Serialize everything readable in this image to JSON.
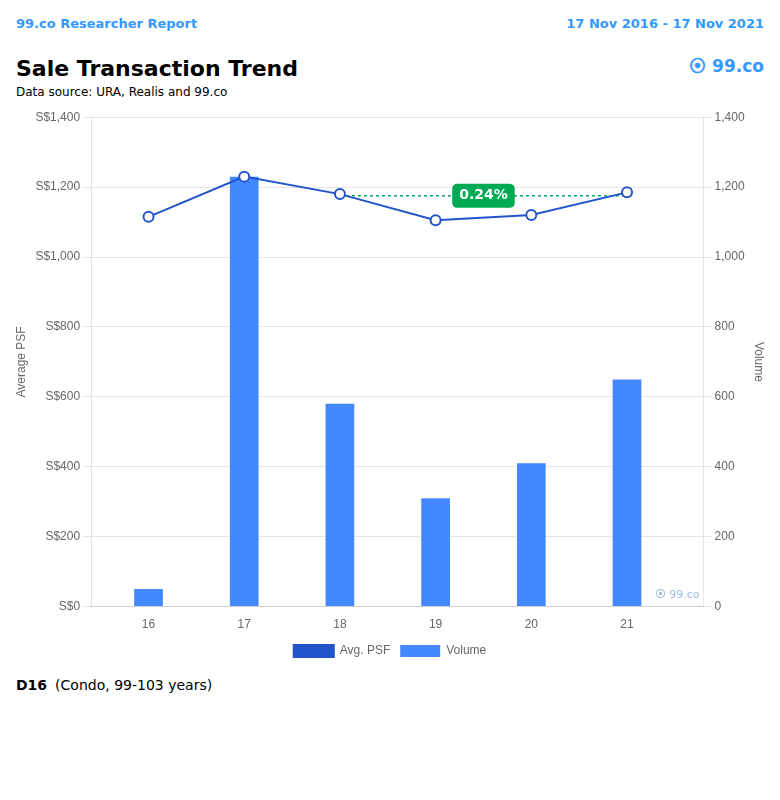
{
  "chart_data": {
    "type": "bar",
    "header": [
      "99.co Researcher Report",
      "17 Nov 2016 - 17 Nov 2021"
    ],
    "header_color": "#3399ff",
    "title": "Sale Transaction Trend",
    "logo": "⦿ 99.co",
    "subtitle": "Data source: URA, Realis and 99.co",
    "watermark": "⦿ 99.co",
    "footer": [
      "D16",
      "(Condo, 99-103 years)"
    ],
    "x": [
      16,
      17,
      18,
      19,
      20,
      21
    ],
    "xlim": [
      15.4,
      21.8
    ],
    "xticks": [
      16,
      17,
      18,
      19,
      20,
      21
    ],
    "ylabel": "Average PSF",
    "ylim": [
      0,
      1400
    ],
    "yticks": [
      {
        "value": 0,
        "label": "S$0"
      },
      {
        "value": 200,
        "label": "S$200"
      },
      {
        "value": 400,
        "label": "S$400"
      },
      {
        "value": 600,
        "label": "S$600"
      },
      {
        "value": 800,
        "label": "S$800"
      },
      {
        "value": 1000,
        "label": "S$1,000"
      },
      {
        "value": 1200,
        "label": "S$1,200"
      },
      {
        "value": 1400,
        "label": "S$1,400"
      }
    ],
    "y2label": "Volume",
    "y2lim": [
      0,
      1400
    ],
    "y2ticks": [
      0,
      200,
      400,
      600,
      800,
      {
        "value": 1000,
        "label": "1,000"
      },
      {
        "value": 1200,
        "label": "1,200"
      },
      {
        "value": 1400,
        "label": "1,400"
      }
    ],
    "series": [
      {
        "name": "Avg. PSF",
        "type": "line",
        "color": "#2255cc",
        "marker": "circle",
        "axis": "y",
        "values": [
          1115,
          1230,
          1180,
          1105,
          1120,
          1185
        ]
      },
      {
        "name": "Volume",
        "type": "bar",
        "color": "#4488ff",
        "axis": "y2",
        "values": [
          50,
          1230,
          580,
          310,
          410,
          650
        ]
      }
    ],
    "lines": [
      {
        "x": [
          18,
          21
        ],
        "y": [
          1175,
          1175
        ],
        "color": "#00aa66",
        "line_style": "dotted"
      }
    ],
    "annotations": [
      {
        "text": "0.24%",
        "x": 19.5,
        "y": 1175,
        "color": "#00aa55"
      }
    ],
    "grid": "y",
    "legend": "bottom"
  }
}
